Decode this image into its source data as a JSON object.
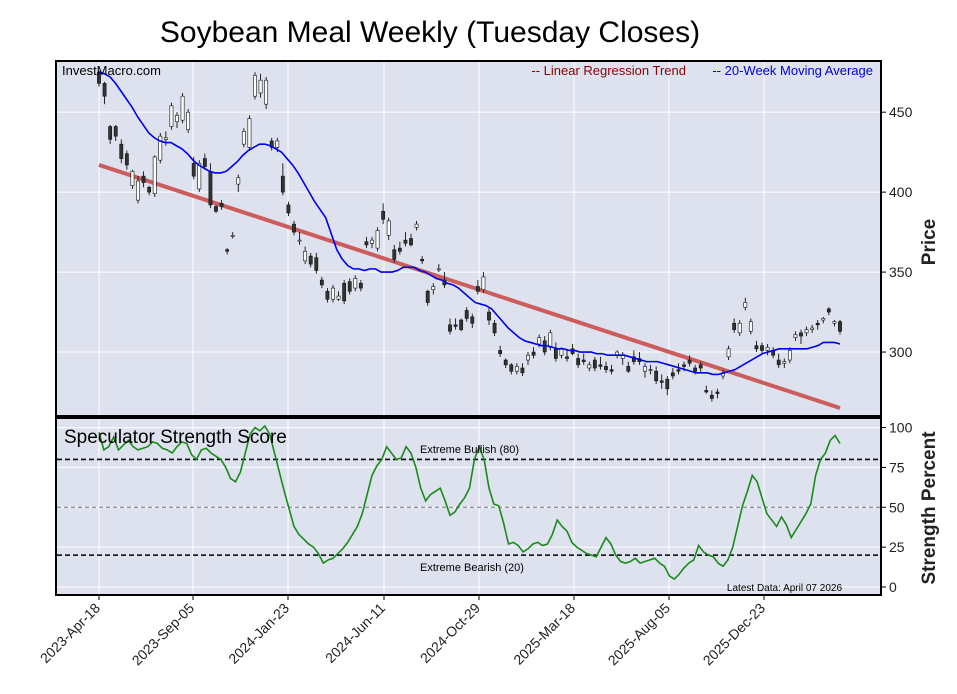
{
  "chart_data": {
    "type": "candlestick+line",
    "title": "Soybean Meal Weekly (Tuesday Closes)",
    "watermark": "InvestMacro.com",
    "legend": {
      "regression": "-- Linear Regression Trend",
      "moving_average": "-- 20-Week Moving Average",
      "regression_color": "#8b0000",
      "ma_color": "#0000dd"
    },
    "colors": {
      "plot_bg": "#dde2ee",
      "regression_line": "#cd5c5c",
      "ma_line": "#0000ee",
      "score_line": "#1a8a1a",
      "bull_candle": "#ffffff",
      "bear_candle": "#333333"
    },
    "price_panel": {
      "ylabel": "Price",
      "y_ticks": [
        300,
        350,
        400,
        450
      ],
      "ylim": [
        260,
        482
      ],
      "regression": {
        "start": 417,
        "end": 265
      },
      "ohlc": [
        [
          475,
          476,
          466,
          468
        ],
        [
          468,
          469,
          455,
          460
        ],
        [
          441,
          442,
          430,
          433
        ],
        [
          441,
          442,
          432,
          435
        ],
        [
          430,
          433,
          418,
          421
        ],
        [
          424,
          426,
          414,
          417
        ],
        [
          404,
          414,
          402,
          413
        ],
        [
          395,
          410,
          393,
          407
        ],
        [
          410,
          413,
          403,
          406
        ],
        [
          403,
          404,
          398,
          400
        ],
        [
          399,
          423,
          397,
          422
        ],
        [
          420,
          437,
          418,
          435
        ],
        [
          433,
          438,
          429,
          434
        ],
        [
          441,
          456,
          439,
          454
        ],
        [
          444,
          450,
          440,
          448
        ],
        [
          445,
          462,
          443,
          460
        ],
        [
          439,
          452,
          437,
          450
        ],
        [
          418,
          422,
          408,
          410
        ],
        [
          402,
          420,
          400,
          418
        ],
        [
          421,
          424,
          414,
          416
        ],
        [
          413,
          418,
          390,
          392
        ],
        [
          391,
          392,
          387,
          388
        ],
        [
          393,
          395,
          389,
          391
        ],
        [
          364,
          365,
          361,
          363
        ],
        [
          373,
          375,
          371,
          373
        ],
        [
          405,
          411,
          400,
          409
        ],
        [
          430,
          440,
          428,
          438
        ],
        [
          428,
          448,
          426,
          446
        ],
        [
          460,
          475,
          458,
          473
        ],
        [
          462,
          474,
          459,
          470
        ],
        [
          455,
          472,
          452,
          470
        ],
        [
          432,
          434,
          426,
          428
        ],
        [
          428,
          434,
          425,
          432
        ],
        [
          410,
          418,
          398,
          400
        ],
        [
          392,
          394,
          385,
          387
        ],
        [
          380,
          382,
          373,
          375
        ],
        [
          370,
          375,
          367,
          370
        ],
        [
          357,
          366,
          355,
          363
        ],
        [
          360,
          362,
          353,
          355
        ],
        [
          359,
          362,
          349,
          351
        ],
        [
          345,
          347,
          340,
          342
        ],
        [
          338,
          340,
          331,
          333
        ],
        [
          333,
          342,
          331,
          340
        ],
        [
          333,
          338,
          332,
          335
        ],
        [
          343,
          345,
          330,
          332
        ],
        [
          344,
          346,
          336,
          338
        ],
        [
          340,
          348,
          338,
          346
        ],
        [
          343,
          345,
          338,
          340
        ],
        [
          369,
          372,
          365,
          367
        ],
        [
          368,
          372,
          365,
          370
        ],
        [
          365,
          378,
          363,
          376
        ],
        [
          388,
          393,
          380,
          383
        ],
        [
          373,
          384,
          370,
          382
        ],
        [
          364,
          367,
          356,
          358
        ],
        [
          365,
          369,
          361,
          363
        ],
        [
          370,
          375,
          366,
          368
        ],
        [
          371,
          374,
          366,
          367
        ],
        [
          378,
          382,
          376,
          380
        ],
        [
          358,
          360,
          355,
          357
        ],
        [
          338,
          339,
          329,
          331
        ],
        [
          339,
          343,
          336,
          341
        ],
        [
          352,
          355,
          350,
          352
        ],
        [
          345,
          350,
          340,
          342
        ],
        [
          317,
          321,
          311,
          313
        ],
        [
          317,
          321,
          314,
          316
        ],
        [
          320,
          321,
          313,
          314
        ],
        [
          326,
          328,
          319,
          321
        ],
        [
          322,
          324,
          315,
          318
        ],
        [
          341,
          345,
          336,
          338
        ],
        [
          339,
          350,
          337,
          347
        ],
        [
          325,
          328,
          317,
          320
        ],
        [
          318,
          320,
          310,
          312
        ],
        [
          301,
          304,
          297,
          299
        ],
        [
          295,
          296,
          290,
          292
        ],
        [
          292,
          293,
          286,
          288
        ],
        [
          288,
          293,
          286,
          291
        ],
        [
          290,
          293,
          285,
          287
        ],
        [
          295,
          300,
          292,
          298
        ],
        [
          300,
          303,
          296,
          298
        ],
        [
          305,
          311,
          303,
          309
        ],
        [
          307,
          310,
          298,
          300
        ],
        [
          303,
          314,
          301,
          312
        ],
        [
          302,
          306,
          294,
          296
        ],
        [
          298,
          303,
          296,
          302
        ],
        [
          297,
          302,
          294,
          296
        ],
        [
          302,
          305,
          298,
          299
        ],
        [
          296,
          299,
          290,
          292
        ],
        [
          295,
          299,
          292,
          294
        ],
        [
          290,
          294,
          288,
          292
        ],
        [
          295,
          297,
          288,
          290
        ],
        [
          292,
          297,
          289,
          291
        ],
        [
          291,
          294,
          287,
          289
        ],
        [
          289,
          292,
          286,
          288
        ],
        [
          298,
          301,
          296,
          300
        ],
        [
          296,
          300,
          292,
          298
        ],
        [
          291,
          294,
          287,
          288
        ],
        [
          297,
          301,
          292,
          294
        ],
        [
          296,
          300,
          292,
          294
        ],
        [
          288,
          293,
          284,
          291
        ],
        [
          289,
          292,
          286,
          289
        ],
        [
          288,
          291,
          280,
          282
        ],
        [
          282,
          286,
          277,
          281
        ],
        [
          283,
          285,
          273,
          277
        ],
        [
          287,
          290,
          283,
          285
        ],
        [
          289,
          293,
          286,
          288
        ],
        [
          292,
          294,
          288,
          291
        ],
        [
          295,
          298,
          291,
          293
        ],
        [
          290,
          292,
          286,
          288
        ],
        [
          292,
          294,
          287,
          290
        ],
        [
          276,
          279,
          274,
          275
        ],
        [
          273,
          276,
          269,
          271
        ],
        [
          275,
          277,
          271,
          274
        ],
        [
          285,
          289,
          283,
          287
        ],
        [
          297,
          304,
          295,
          302
        ],
        [
          318,
          321,
          312,
          314
        ],
        [
          312,
          320,
          310,
          318
        ],
        [
          328,
          334,
          326,
          331
        ],
        [
          313,
          321,
          311,
          319
        ],
        [
          304,
          307,
          300,
          302
        ],
        [
          304,
          306,
          299,
          301
        ],
        [
          301,
          305,
          298,
          303
        ],
        [
          301,
          303,
          296,
          298
        ],
        [
          295,
          299,
          290,
          292
        ],
        [
          293,
          296,
          290,
          294
        ],
        [
          295,
          303,
          293,
          301
        ],
        [
          309,
          313,
          307,
          311
        ],
        [
          312,
          314,
          305,
          310
        ],
        [
          312,
          316,
          310,
          314
        ],
        [
          314,
          317,
          312,
          315
        ],
        [
          318,
          320,
          314,
          317
        ],
        [
          320,
          322,
          318,
          321
        ],
        [
          327,
          328,
          323,
          325
        ],
        [
          318,
          320,
          316,
          319
        ],
        [
          319,
          320,
          311,
          313
        ]
      ],
      "ma20": [
        475,
        474,
        472,
        468,
        463,
        458,
        453,
        447,
        442,
        437,
        434,
        432,
        431,
        431,
        429,
        427,
        424,
        420,
        417,
        415,
        413,
        412,
        412,
        413,
        416,
        419,
        423,
        426,
        428,
        430,
        430,
        429,
        427,
        425,
        421,
        417,
        412,
        406,
        400,
        394,
        389,
        384,
        374,
        364,
        358,
        354,
        352,
        352,
        351,
        352,
        352,
        350,
        350,
        350,
        351,
        353,
        353,
        353,
        351,
        350,
        348,
        346,
        345,
        343,
        342,
        340,
        337,
        334,
        331,
        330,
        329,
        327,
        323,
        319,
        315,
        312,
        309,
        307,
        306,
        305,
        304,
        304,
        303,
        302,
        302,
        301,
        301,
        300,
        300,
        300,
        299,
        299,
        298,
        298,
        298,
        298,
        297,
        296,
        295,
        294,
        294,
        294,
        293,
        292,
        291,
        290,
        289,
        288,
        287,
        287,
        287,
        286,
        286,
        287,
        288,
        289,
        291,
        293,
        295,
        297,
        299,
        300,
        301,
        302,
        302,
        302,
        302,
        302,
        302,
        303,
        304,
        306,
        306,
        306,
        305
      ]
    },
    "score_panel": {
      "title": "Speculator Strength Score",
      "ylabel": "Strength Percent",
      "y_ticks": [
        0,
        25,
        50,
        75,
        100
      ],
      "ylim": [
        -5,
        106
      ],
      "extreme_bullish_label": "Extreme Bullish (80)",
      "extreme_bearish_label": "Extreme Bearish (20)",
      "latest_label": "Latest Data: April 07 2026",
      "values": [
        97,
        86,
        88,
        94,
        86,
        89,
        92,
        88,
        86,
        87,
        88,
        91,
        90,
        87,
        86,
        84,
        88,
        91,
        90,
        83,
        80,
        86,
        87,
        84,
        82,
        80,
        75,
        68,
        66,
        72,
        84,
        96,
        100,
        98,
        101,
        96,
        84,
        72,
        60,
        49,
        38,
        33,
        30,
        27,
        25,
        21,
        15,
        17,
        18,
        21,
        24,
        28,
        33,
        38,
        46,
        58,
        70,
        76,
        80,
        88,
        84,
        80,
        81,
        88,
        84,
        75,
        62,
        54,
        58,
        60,
        62,
        54,
        45,
        47,
        52,
        56,
        62,
        80,
        88,
        80,
        62,
        52,
        51,
        40,
        27,
        28,
        26,
        22,
        24,
        27,
        28,
        26,
        27,
        33,
        42,
        38,
        35,
        28,
        25,
        23,
        21,
        20,
        19,
        25,
        31,
        27,
        20,
        16,
        15,
        16,
        18,
        15,
        16,
        17,
        18,
        15,
        13,
        7,
        5,
        8,
        12,
        15,
        17,
        26,
        22,
        20,
        19,
        15,
        13,
        17,
        25,
        38,
        51,
        60,
        70,
        66,
        56,
        46,
        42,
        38,
        44,
        39,
        31,
        36,
        41,
        46,
        52,
        70,
        80,
        84,
        92,
        95,
        90
      ]
    },
    "x_ticks": [
      "2023-Apr-18",
      "2023-Sep-05",
      "2024-Jan-23",
      "2024-Jun-11",
      "2024-Oct-29",
      "2025-Mar-18",
      "2025-Aug-05",
      "2025-Dec-23"
    ]
  }
}
